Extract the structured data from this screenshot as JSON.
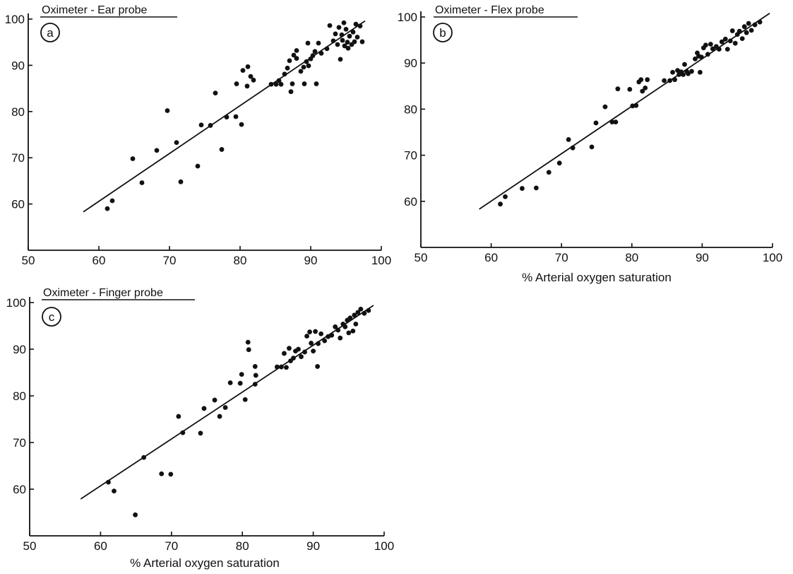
{
  "figure": {
    "ink_color": "#111111",
    "background_color": "#ffffff"
  },
  "chart_data": [
    {
      "type": "scatter",
      "panel": "a",
      "title": "Oximeter - Ear probe",
      "xlabel": "",
      "ylabel": "",
      "xlim": [
        50,
        100
      ],
      "ylim": [
        50,
        100
      ],
      "xticks": [
        50,
        60,
        70,
        80,
        90,
        100
      ],
      "yticks": [
        60,
        70,
        80,
        90,
        100
      ],
      "grid": false,
      "series": [
        {
          "points": [
            [
              61.2,
              59.0
            ],
            [
              61.9,
              60.7
            ],
            [
              64.8,
              69.8
            ],
            [
              66.1,
              64.6
            ],
            [
              68.2,
              71.6
            ],
            [
              69.7,
              80.2
            ],
            [
              71.0,
              73.3
            ],
            [
              71.6,
              64.8
            ],
            [
              74.0,
              68.2
            ],
            [
              74.5,
              77.1
            ],
            [
              75.8,
              77.0
            ],
            [
              76.5,
              84.0
            ],
            [
              77.4,
              71.8
            ],
            [
              78.1,
              78.8
            ],
            [
              79.4,
              78.9
            ],
            [
              79.5,
              86.0
            ],
            [
              80.2,
              77.2
            ],
            [
              80.4,
              88.9
            ],
            [
              81.0,
              85.5
            ],
            [
              81.1,
              89.7
            ],
            [
              81.5,
              87.6
            ],
            [
              81.9,
              86.8
            ],
            [
              84.4,
              85.9
            ],
            [
              85.1,
              85.9
            ],
            [
              85.5,
              86.7
            ],
            [
              85.8,
              85.9
            ],
            [
              86.3,
              88.1
            ],
            [
              86.7,
              89.4
            ],
            [
              87.0,
              91.0
            ],
            [
              87.2,
              84.3
            ],
            [
              87.4,
              86.0
            ],
            [
              87.6,
              92.2
            ],
            [
              88.0,
              93.2
            ],
            [
              88.0,
              91.5
            ],
            [
              88.6,
              88.7
            ],
            [
              89.0,
              89.6
            ],
            [
              89.1,
              86.0
            ],
            [
              89.4,
              90.8
            ],
            [
              89.6,
              94.8
            ],
            [
              89.7,
              89.9
            ],
            [
              90.0,
              91.4
            ],
            [
              90.3,
              92.1
            ],
            [
              90.6,
              93.0
            ],
            [
              90.8,
              86.0
            ],
            [
              91.1,
              94.8
            ],
            [
              91.5,
              92.6
            ],
            [
              92.3,
              93.6
            ],
            [
              92.7,
              98.6
            ],
            [
              93.2,
              95.3
            ],
            [
              93.5,
              96.8
            ],
            [
              93.8,
              94.5
            ],
            [
              94.0,
              98.2
            ],
            [
              94.2,
              91.3
            ],
            [
              94.4,
              96.6
            ],
            [
              94.5,
              95.4
            ],
            [
              94.7,
              99.2
            ],
            [
              94.8,
              94.2
            ],
            [
              95.0,
              97.8
            ],
            [
              95.2,
              95.0
            ],
            [
              95.3,
              93.7
            ],
            [
              95.5,
              96.3
            ],
            [
              95.8,
              94.5
            ],
            [
              96.0,
              97.2
            ],
            [
              96.2,
              95.1
            ],
            [
              96.4,
              98.9
            ],
            [
              96.6,
              96.1
            ],
            [
              97.0,
              98.5
            ],
            [
              97.3,
              95.1
            ]
          ]
        },
        {
          "type": "line",
          "points": [
            [
              57.8,
              58.3
            ],
            [
              97.7,
              99.6
            ]
          ]
        }
      ]
    },
    {
      "type": "scatter",
      "panel": "b",
      "title": "Oximeter - Flex probe",
      "xlabel": "% Arterial oxygen saturation",
      "ylabel": "",
      "xlim": [
        50,
        100
      ],
      "ylim": [
        50,
        100
      ],
      "xticks": [
        50,
        60,
        70,
        80,
        90,
        100
      ],
      "yticks": [
        60,
        70,
        80,
        90,
        100
      ],
      "grid": false,
      "series": [
        {
          "points": [
            [
              61.3,
              59.4
            ],
            [
              62.0,
              61.0
            ],
            [
              64.4,
              62.8
            ],
            [
              66.4,
              62.9
            ],
            [
              68.2,
              66.3
            ],
            [
              69.7,
              68.3
            ],
            [
              71.0,
              73.4
            ],
            [
              71.6,
              71.6
            ],
            [
              74.3,
              71.8
            ],
            [
              74.9,
              77.0
            ],
            [
              76.2,
              80.5
            ],
            [
              77.2,
              77.2
            ],
            [
              77.7,
              77.2
            ],
            [
              78.0,
              84.4
            ],
            [
              79.7,
              84.3
            ],
            [
              80.1,
              80.7
            ],
            [
              80.6,
              80.8
            ],
            [
              81.0,
              85.9
            ],
            [
              81.3,
              86.4
            ],
            [
              81.5,
              83.9
            ],
            [
              81.9,
              84.6
            ],
            [
              82.2,
              86.4
            ],
            [
              84.6,
              86.2
            ],
            [
              85.4,
              86.2
            ],
            [
              85.8,
              88.0
            ],
            [
              86.1,
              86.4
            ],
            [
              86.5,
              88.4
            ],
            [
              86.7,
              87.5
            ],
            [
              87.0,
              88.1
            ],
            [
              87.3,
              87.5
            ],
            [
              87.5,
              89.7
            ],
            [
              87.8,
              88.2
            ],
            [
              88.0,
              87.7
            ],
            [
              88.5,
              88.2
            ],
            [
              89.0,
              90.9
            ],
            [
              89.3,
              92.2
            ],
            [
              89.5,
              91.5
            ],
            [
              89.7,
              88.0
            ],
            [
              89.9,
              91.3
            ],
            [
              90.2,
              93.3
            ],
            [
              90.5,
              93.9
            ],
            [
              90.8,
              91.9
            ],
            [
              91.2,
              94.1
            ],
            [
              91.5,
              93.1
            ],
            [
              92.0,
              93.6
            ],
            [
              92.4,
              93.0
            ],
            [
              92.8,
              94.6
            ],
            [
              93.3,
              95.2
            ],
            [
              93.6,
              93.0
            ],
            [
              94.0,
              94.8
            ],
            [
              94.3,
              97.0
            ],
            [
              94.7,
              94.3
            ],
            [
              95.0,
              96.2
            ],
            [
              95.3,
              96.9
            ],
            [
              95.7,
              95.3
            ],
            [
              96.0,
              97.9
            ],
            [
              96.3,
              96.6
            ],
            [
              96.6,
              98.6
            ],
            [
              97.0,
              97.1
            ],
            [
              97.5,
              98.3
            ],
            [
              98.2,
              98.9
            ]
          ]
        },
        {
          "type": "line",
          "points": [
            [
              58.3,
              58.3
            ],
            [
              99.6,
              100.8
            ]
          ]
        }
      ]
    },
    {
      "type": "scatter",
      "panel": "c",
      "title": "Oximeter - Finger probe",
      "xlabel": "% Arterial oxygen saturation",
      "ylabel": "",
      "xlim": [
        50,
        100
      ],
      "ylim": [
        50,
        100
      ],
      "xticks": [
        50,
        60,
        70,
        80,
        90,
        100
      ],
      "yticks": [
        60,
        70,
        80,
        90,
        100
      ],
      "grid": false,
      "series": [
        {
          "points": [
            [
              61.1,
              61.5
            ],
            [
              61.9,
              59.6
            ],
            [
              64.9,
              54.5
            ],
            [
              66.1,
              66.8
            ],
            [
              68.6,
              63.3
            ],
            [
              69.9,
              63.2
            ],
            [
              71.0,
              75.6
            ],
            [
              71.6,
              72.1
            ],
            [
              74.1,
              72.0
            ],
            [
              74.6,
              77.3
            ],
            [
              76.1,
              79.1
            ],
            [
              76.8,
              75.6
            ],
            [
              77.6,
              77.5
            ],
            [
              78.3,
              82.8
            ],
            [
              79.7,
              82.7
            ],
            [
              79.9,
              84.6
            ],
            [
              80.4,
              79.2
            ],
            [
              80.8,
              91.5
            ],
            [
              80.9,
              89.9
            ],
            [
              81.8,
              86.3
            ],
            [
              81.8,
              82.5
            ],
            [
              81.9,
              84.4
            ],
            [
              84.9,
              86.2
            ],
            [
              85.5,
              86.2
            ],
            [
              85.9,
              89.1
            ],
            [
              86.2,
              86.1
            ],
            [
              86.6,
              90.2
            ],
            [
              86.8,
              87.5
            ],
            [
              87.2,
              88.1
            ],
            [
              87.5,
              89.6
            ],
            [
              87.9,
              90.0
            ],
            [
              88.3,
              88.4
            ],
            [
              88.8,
              89.4
            ],
            [
              89.1,
              92.8
            ],
            [
              89.5,
              93.7
            ],
            [
              89.7,
              91.3
            ],
            [
              90.0,
              89.6
            ],
            [
              90.3,
              93.8
            ],
            [
              90.6,
              86.3
            ],
            [
              90.7,
              91.2
            ],
            [
              91.1,
              93.3
            ],
            [
              91.6,
              91.8
            ],
            [
              92.1,
              92.7
            ],
            [
              92.6,
              93.0
            ],
            [
              93.1,
              94.8
            ],
            [
              93.5,
              94.1
            ],
            [
              93.8,
              92.4
            ],
            [
              94.2,
              95.4
            ],
            [
              94.5,
              94.8
            ],
            [
              94.8,
              96.2
            ],
            [
              95.0,
              93.5
            ],
            [
              95.2,
              96.7
            ],
            [
              95.6,
              93.9
            ],
            [
              95.8,
              97.3
            ],
            [
              96.0,
              95.4
            ],
            [
              96.3,
              97.9
            ],
            [
              96.7,
              98.6
            ],
            [
              97.2,
              97.7
            ],
            [
              97.8,
              98.3
            ]
          ]
        },
        {
          "type": "line",
          "points": [
            [
              57.2,
              57.9
            ],
            [
              98.5,
              99.4
            ]
          ]
        }
      ]
    }
  ]
}
